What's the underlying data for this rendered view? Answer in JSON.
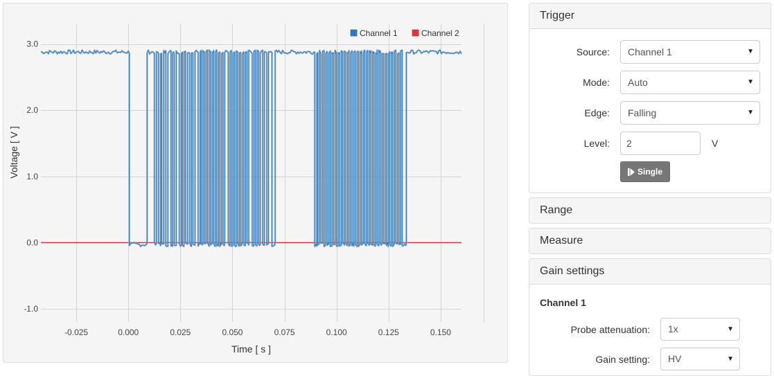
{
  "chart_data": {
    "type": "line",
    "xlabel": "Time [ s ]",
    "ylabel": "Voltage [ V ]",
    "xlim": [
      -0.042,
      0.16
    ],
    "ylim": [
      -1.2,
      3.3
    ],
    "x_ticks": [
      "-0.025",
      "0.000",
      "0.025",
      "0.050",
      "0.075",
      "0.100",
      "0.125",
      "0.150"
    ],
    "x_tick_values": [
      -0.025,
      0.0,
      0.025,
      0.05,
      0.075,
      0.1,
      0.125,
      0.15
    ],
    "y_ticks": [
      "3.0",
      "2.0",
      "1.0",
      "0.0",
      "-1.0"
    ],
    "y_tick_values": [
      3.0,
      2.0,
      1.0,
      0.0,
      -1.0
    ],
    "grid": true,
    "legend_position": "top-right",
    "series": [
      {
        "name": "Channel 1",
        "color": "#337ab7",
        "high": 2.88,
        "low": -0.03,
        "x_range": [
          -0.042,
          0.16
        ],
        "low_intervals": [
          [
            0.0005,
            0.009
          ],
          [
            0.0125,
            0.0135
          ],
          [
            0.0145,
            0.0155
          ],
          [
            0.016,
            0.017
          ],
          [
            0.018,
            0.019
          ],
          [
            0.0205,
            0.0212
          ],
          [
            0.022,
            0.023
          ],
          [
            0.0245,
            0.0255
          ],
          [
            0.026,
            0.0268
          ],
          [
            0.0275,
            0.0285
          ],
          [
            0.0295,
            0.0303
          ],
          [
            0.031,
            0.032
          ],
          [
            0.0335,
            0.0345
          ],
          [
            0.035,
            0.0358
          ],
          [
            0.0365,
            0.0373
          ],
          [
            0.038,
            0.0388
          ],
          [
            0.0395,
            0.0403
          ],
          [
            0.041,
            0.0418
          ],
          [
            0.0425,
            0.0433
          ],
          [
            0.044,
            0.0448
          ],
          [
            0.0455,
            0.0463
          ],
          [
            0.048,
            0.0488
          ],
          [
            0.0495,
            0.0503
          ],
          [
            0.051,
            0.0518
          ],
          [
            0.0525,
            0.0533
          ],
          [
            0.054,
            0.0548
          ],
          [
            0.0555,
            0.0563
          ],
          [
            0.057,
            0.0578
          ],
          [
            0.0595,
            0.0603
          ],
          [
            0.061,
            0.0618
          ],
          [
            0.0625,
            0.0633
          ],
          [
            0.0645,
            0.0653
          ],
          [
            0.0665,
            0.0673
          ],
          [
            0.069,
            0.0705
          ],
          [
            0.0895,
            0.0905
          ],
          [
            0.091,
            0.0918
          ],
          [
            0.0925,
            0.0933
          ],
          [
            0.094,
            0.0948
          ],
          [
            0.0955,
            0.0963
          ],
          [
            0.097,
            0.0978
          ],
          [
            0.0985,
            0.0993
          ],
          [
            0.1,
            0.1008
          ],
          [
            0.1015,
            0.1023
          ],
          [
            0.103,
            0.1038
          ],
          [
            0.1045,
            0.1053
          ],
          [
            0.106,
            0.1068
          ],
          [
            0.1075,
            0.1083
          ],
          [
            0.109,
            0.1098
          ],
          [
            0.1105,
            0.1113
          ],
          [
            0.112,
            0.1128
          ],
          [
            0.1135,
            0.1143
          ],
          [
            0.115,
            0.1158
          ],
          [
            0.1165,
            0.1173
          ],
          [
            0.118,
            0.1188
          ],
          [
            0.1195,
            0.1203
          ],
          [
            0.121,
            0.1218
          ],
          [
            0.1225,
            0.1233
          ],
          [
            0.124,
            0.1248
          ],
          [
            0.1255,
            0.1263
          ],
          [
            0.127,
            0.1278
          ],
          [
            0.1285,
            0.1293
          ],
          [
            0.13,
            0.1308
          ],
          [
            0.1315,
            0.1335
          ]
        ]
      },
      {
        "name": "Channel 2",
        "color": "#d9363e",
        "constant": 0.0,
        "x_range": [
          -0.042,
          0.16
        ]
      }
    ]
  },
  "panels": {
    "trigger": {
      "title": "Trigger",
      "source_label": "Source:",
      "source_value": "Channel 1",
      "mode_label": "Mode:",
      "mode_value": "Auto",
      "edge_label": "Edge:",
      "edge_value": "Falling",
      "level_label": "Level:",
      "level_value": "2",
      "level_unit": "V",
      "single_button": "Single"
    },
    "range": {
      "title": "Range"
    },
    "measure": {
      "title": "Measure"
    },
    "gain": {
      "title": "Gain settings",
      "channel_title": "Channel 1",
      "probe_label": "Probe attenuation:",
      "probe_value": "1x",
      "gain_label": "Gain setting:",
      "gain_value": "HV"
    }
  },
  "icons": {
    "dropdown": "▼",
    "single_button_icon": "step-forward-icon"
  }
}
